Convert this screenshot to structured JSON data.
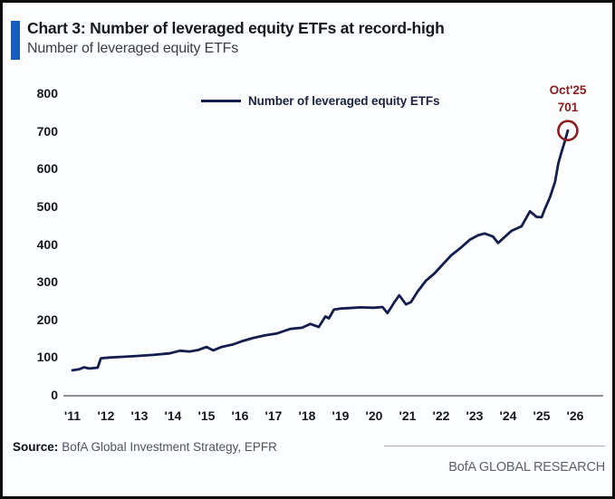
{
  "header": {
    "title": "Chart 3: Number of leveraged equity ETFs at record-high",
    "subtitle": "Number of leveraged equity ETFs"
  },
  "legend": {
    "label": "Number of leveraged equity ETFs"
  },
  "annotation": {
    "date_label": "Oct'25",
    "value_label": "701"
  },
  "footer": {
    "source_label": "Source:",
    "source_text": "BofA Global Investment Strategy, EPFR",
    "brand": "BofA GLOBAL RESEARCH"
  },
  "colors": {
    "accent_blue": "#1a5cbd",
    "line_navy": "#151c4e",
    "annotation_red": "#8b1d1d",
    "axis_gray": "#8c9097"
  },
  "chart_data": {
    "type": "line",
    "title": "Number of leveraged equity ETFs",
    "xlabel": "",
    "ylabel": "",
    "ylim": [
      0,
      800
    ],
    "yticks": [
      0,
      100,
      200,
      300,
      400,
      500,
      600,
      700,
      800
    ],
    "xlim": [
      2011,
      2026
    ],
    "xtick_years": [
      2011,
      2012,
      2013,
      2014,
      2015,
      2016,
      2017,
      2018,
      2019,
      2020,
      2021,
      2022,
      2023,
      2024,
      2025,
      2026
    ],
    "xtick_labels": [
      "'11",
      "'12",
      "'13",
      "'14",
      "'15",
      "'16",
      "'17",
      "'18",
      "'19",
      "'20",
      "'21",
      "'22",
      "'23",
      "'24",
      "'25",
      "'26"
    ],
    "grid": false,
    "legend_position": "top-center",
    "series": [
      {
        "name": "Number of leveraged equity ETFs",
        "points": [
          [
            2011.0,
            65
          ],
          [
            2011.2,
            68
          ],
          [
            2011.35,
            73
          ],
          [
            2011.5,
            70
          ],
          [
            2011.75,
            72
          ],
          [
            2011.85,
            97
          ],
          [
            2012.1,
            99
          ],
          [
            2012.5,
            101
          ],
          [
            2012.9,
            103
          ],
          [
            2013.4,
            106
          ],
          [
            2013.9,
            110
          ],
          [
            2014.2,
            117
          ],
          [
            2014.5,
            115
          ],
          [
            2014.75,
            119
          ],
          [
            2015.0,
            127
          ],
          [
            2015.2,
            118
          ],
          [
            2015.45,
            127
          ],
          [
            2015.8,
            134
          ],
          [
            2016.05,
            142
          ],
          [
            2016.4,
            151
          ],
          [
            2016.75,
            158
          ],
          [
            2017.1,
            163
          ],
          [
            2017.5,
            175
          ],
          [
            2017.85,
            178
          ],
          [
            2018.1,
            188
          ],
          [
            2018.35,
            180
          ],
          [
            2018.55,
            208
          ],
          [
            2018.65,
            203
          ],
          [
            2018.8,
            226
          ],
          [
            2019.0,
            229
          ],
          [
            2019.2,
            230
          ],
          [
            2019.6,
            232
          ],
          [
            2020.0,
            231
          ],
          [
            2020.25,
            233
          ],
          [
            2020.4,
            217
          ],
          [
            2020.6,
            245
          ],
          [
            2020.75,
            264
          ],
          [
            2020.95,
            240
          ],
          [
            2021.1,
            246
          ],
          [
            2021.3,
            274
          ],
          [
            2021.55,
            303
          ],
          [
            2021.8,
            322
          ],
          [
            2022.05,
            346
          ],
          [
            2022.3,
            370
          ],
          [
            2022.6,
            391
          ],
          [
            2022.85,
            411
          ],
          [
            2023.1,
            423
          ],
          [
            2023.3,
            428
          ],
          [
            2023.55,
            420
          ],
          [
            2023.7,
            403
          ],
          [
            2023.85,
            415
          ],
          [
            2024.1,
            435
          ],
          [
            2024.4,
            447
          ],
          [
            2024.65,
            487
          ],
          [
            2024.85,
            472
          ],
          [
            2025.0,
            471
          ],
          [
            2025.1,
            494
          ],
          [
            2025.25,
            525
          ],
          [
            2025.4,
            565
          ],
          [
            2025.5,
            615
          ],
          [
            2025.6,
            646
          ],
          [
            2025.7,
            675
          ],
          [
            2025.78,
            701
          ]
        ]
      }
    ],
    "highlight_point": {
      "x": 2025.78,
      "y": 701,
      "label": "Oct'25",
      "value": 701
    }
  }
}
